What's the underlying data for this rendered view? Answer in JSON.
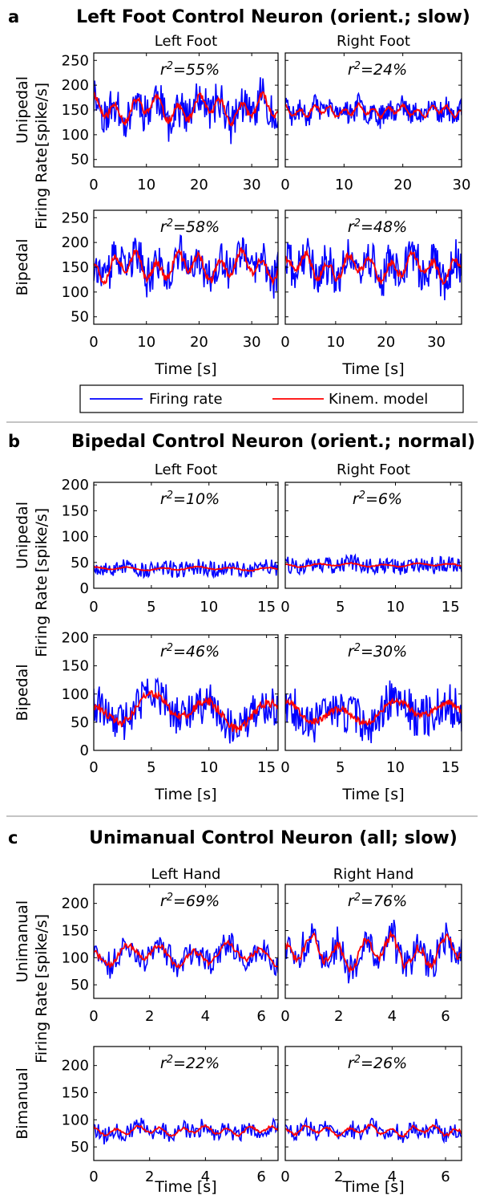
{
  "legend": {
    "firing": "Firing rate",
    "model": "Kinem. model",
    "firing_color": "#0000ff",
    "model_color": "#ff0000"
  },
  "r2_label": "r",
  "r2_sup": "2",
  "chart_data": [
    {
      "panel": "a",
      "title": "Left Foot Control Neuron (orient.; slow)",
      "col_titles": [
        "Left Foot",
        "Right Foot"
      ],
      "row_titles": [
        "Unipedal",
        "Bipedal"
      ],
      "ylabel": "Firing Rate",
      "ylabel_unit": "[spike/s]",
      "xlabel": "Time [s]",
      "ylim": [
        35,
        265
      ],
      "yticks": [
        50,
        100,
        150,
        200,
        250
      ],
      "subplots": [
        {
          "type": "line",
          "row": 0,
          "col": 0,
          "r2": "=55%",
          "xlim": [
            0,
            35
          ],
          "xticks": [
            0,
            10,
            20,
            30
          ],
          "mean": 152,
          "fr_sd": 38,
          "model_sd": 22,
          "seed": 11,
          "period": 4.0,
          "n": 220
        },
        {
          "type": "line",
          "row": 0,
          "col": 1,
          "r2": "=24%",
          "xlim": [
            0,
            30
          ],
          "xticks": [
            0,
            10,
            20,
            30
          ],
          "mean": 148,
          "fr_sd": 22,
          "model_sd": 10,
          "seed": 23,
          "period": 2.5,
          "n": 220
        },
        {
          "type": "line",
          "row": 1,
          "col": 0,
          "r2": "=58%",
          "xlim": [
            0,
            35
          ],
          "xticks": [
            0,
            10,
            20,
            30
          ],
          "mean": 152,
          "fr_sd": 38,
          "model_sd": 24,
          "seed": 37,
          "period": 4.0,
          "n": 220
        },
        {
          "type": "line",
          "row": 1,
          "col": 1,
          "r2": "=48%",
          "xlim": [
            0,
            35
          ],
          "xticks": [
            0,
            10,
            20,
            30
          ],
          "mean": 150,
          "fr_sd": 40,
          "model_sd": 22,
          "seed": 41,
          "period": 4.2,
          "n": 220
        }
      ]
    },
    {
      "panel": "b",
      "title": "Bipedal Control Neuron (orient.; normal)",
      "col_titles": [
        "Left Foot",
        "Right Foot"
      ],
      "row_titles": [
        "Unipedal",
        "Bipedal"
      ],
      "ylabel": "Firing Rate",
      "ylabel_unit": "[spike/s]",
      "xlabel": "Time [s]",
      "ylim": [
        0,
        205
      ],
      "yticks": [
        0,
        50,
        100,
        150,
        200
      ],
      "subplots": [
        {
          "type": "line",
          "row": 0,
          "col": 0,
          "r2": "=10%",
          "xlim": [
            0,
            16
          ],
          "xticks": [
            0,
            5,
            10,
            15
          ],
          "mean": 38,
          "fr_sd": 16,
          "model_sd": 3,
          "seed": 53,
          "period": 3,
          "n": 200
        },
        {
          "type": "line",
          "row": 0,
          "col": 1,
          "r2": "=6%",
          "xlim": [
            0,
            16
          ],
          "xticks": [
            0,
            5,
            10,
            15
          ],
          "mean": 45,
          "fr_sd": 16,
          "model_sd": 3,
          "seed": 59,
          "period": 3,
          "n": 200
        },
        {
          "type": "line",
          "row": 1,
          "col": 0,
          "r2": "=46%",
          "xlim": [
            0,
            16
          ],
          "xticks": [
            0,
            5,
            10,
            15
          ],
          "mean": 70,
          "fr_sd": 35,
          "model_sd": 25,
          "seed": 61,
          "period": 5,
          "n": 200
        },
        {
          "type": "line",
          "row": 1,
          "col": 1,
          "r2": "=30%",
          "xlim": [
            0,
            16
          ],
          "xticks": [
            0,
            5,
            10,
            15
          ],
          "mean": 68,
          "fr_sd": 38,
          "model_sd": 18,
          "seed": 67,
          "period": 5,
          "n": 200
        }
      ]
    },
    {
      "panel": "c",
      "title": "Unimanual Control Neuron (all; slow)",
      "col_titles": [
        "Left Hand",
        "Right Hand"
      ],
      "row_titles": [
        "Unimanual",
        "Bimanual"
      ],
      "ylabel": "Firing Rate",
      "ylabel_unit": "[spike/s]",
      "xlabel": "Time [s]",
      "ylim": [
        25,
        235
      ],
      "yticks": [
        50,
        100,
        150,
        200
      ],
      "subplots": [
        {
          "type": "line",
          "row": 0,
          "col": 0,
          "r2": "=69%",
          "xlim": [
            0,
            6.6
          ],
          "xticks": [
            0,
            2,
            4,
            6
          ],
          "mean": 105,
          "fr_sd": 22,
          "model_sd": 17,
          "seed": 71,
          "period": 1.2,
          "n": 160
        },
        {
          "type": "line",
          "row": 0,
          "col": 1,
          "r2": "=76%",
          "xlim": [
            0,
            6.6
          ],
          "xticks": [
            0,
            2,
            4,
            6
          ],
          "mean": 110,
          "fr_sd": 30,
          "model_sd": 25,
          "seed": 73,
          "period": 1.0,
          "n": 160
        },
        {
          "type": "line",
          "row": 1,
          "col": 0,
          "r2": "=22%",
          "xlim": [
            0,
            6.6
          ],
          "xticks": [
            0,
            2,
            4,
            6
          ],
          "mean": 80,
          "fr_sd": 16,
          "model_sd": 7,
          "seed": 79,
          "period": 0.8,
          "n": 160
        },
        {
          "type": "line",
          "row": 1,
          "col": 1,
          "r2": "=26%",
          "xlim": [
            0,
            6.6
          ],
          "xticks": [
            0,
            2,
            4,
            6
          ],
          "mean": 80,
          "fr_sd": 16,
          "model_sd": 8,
          "seed": 83,
          "period": 0.8,
          "n": 160
        }
      ]
    }
  ]
}
